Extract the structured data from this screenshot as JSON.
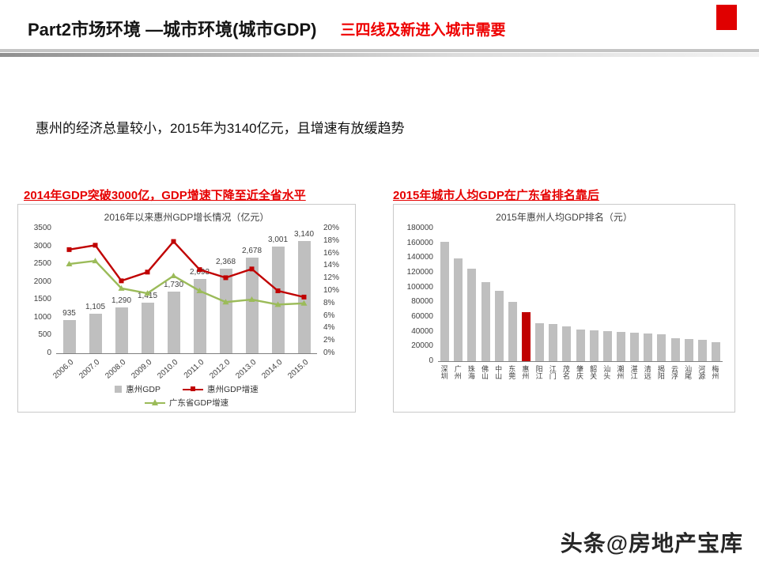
{
  "header": {
    "title": "Part2市场环境 —城市环境(城市GDP)",
    "subtitle_red": "三四线及新进入城市需要"
  },
  "intro_text": "惠州的经济总量较小，2015年为3140亿元，且增速有放缓趋势",
  "panels": {
    "left_heading": "2014年GDP突破3000亿，GDP增速下降至近全省水平",
    "right_heading": "2015年城市人均GDP在广东省排名靠后"
  },
  "watermark": "头条@房地产宝库",
  "colors": {
    "accent_red": "#e00000",
    "heading_red": "#e60000",
    "bar_gray": "#bfbfbf",
    "line_red": "#c00000",
    "line_green": "#9bbb59"
  },
  "chart_data": [
    {
      "type": "combo",
      "title": "2016年以来惠州GDP增长情况（亿元）",
      "categories": [
        "2006.0",
        "2007.0",
        "2008.0",
        "2009.0",
        "2010.0",
        "2011.0",
        "2012.0",
        "2013.0",
        "2014.0",
        "2015.0"
      ],
      "bar_series": {
        "name": "惠州GDP",
        "color": "#bfbfbf",
        "values": [
          935,
          1105,
          1290,
          1415,
          1730,
          2093,
          2368,
          2678,
          3001,
          3140
        ],
        "labels": [
          "935",
          "1,105",
          "1,290",
          "1,415",
          "1,730",
          "2,093",
          "2,368",
          "2,678",
          "3,001",
          "3,140"
        ]
      },
      "line_series": [
        {
          "name": "惠州GDP增速",
          "color": "#c00000",
          "marker": "square",
          "values": [
            16.6,
            17.3,
            11.6,
            13.0,
            17.9,
            13.4,
            12.1,
            13.5,
            10.0,
            9.0
          ]
        },
        {
          "name": "广东省GDP增速",
          "color": "#9bbb59",
          "marker": "triangle",
          "values": [
            14.3,
            14.8,
            10.4,
            9.6,
            12.4,
            10.0,
            8.2,
            8.6,
            7.8,
            8.0
          ]
        }
      ],
      "left_axis": {
        "min": 0,
        "max": 3500,
        "ticks": [
          0,
          500,
          1000,
          1500,
          2000,
          2500,
          3000,
          3500
        ]
      },
      "right_axis": {
        "min": 0,
        "max": 20,
        "tick_labels": [
          "0%",
          "2%",
          "4%",
          "6%",
          "8%",
          "10%",
          "12%",
          "14%",
          "16%",
          "18%",
          "20%"
        ]
      },
      "legend_position": "bottom",
      "grid": false
    },
    {
      "type": "bar",
      "title": "2015年惠州人均GDP排名（元）",
      "categories": [
        "深圳",
        "广州",
        "珠海",
        "佛山",
        "中山",
        "东莞",
        "惠州",
        "阳江",
        "江门",
        "茂名",
        "肇庆",
        "韶关",
        "汕头",
        "潮州",
        "湛江",
        "清远",
        "揭阳",
        "云浮",
        "汕尾",
        "河源",
        "梅州"
      ],
      "values": [
        162000,
        139000,
        125000,
        107000,
        95000,
        80000,
        66000,
        51000,
        50000,
        47000,
        43000,
        42000,
        41000,
        40000,
        39000,
        38000,
        36000,
        31000,
        30000,
        29000,
        26000
      ],
      "bar_color": "#bfbfbf",
      "highlight": {
        "category": "惠州",
        "index": 6,
        "color": "#c00000"
      },
      "ylim": [
        0,
        180000
      ],
      "yticks": [
        0,
        20000,
        40000,
        60000,
        80000,
        100000,
        120000,
        140000,
        160000,
        180000
      ],
      "grid": false,
      "legend_position": "none"
    }
  ]
}
